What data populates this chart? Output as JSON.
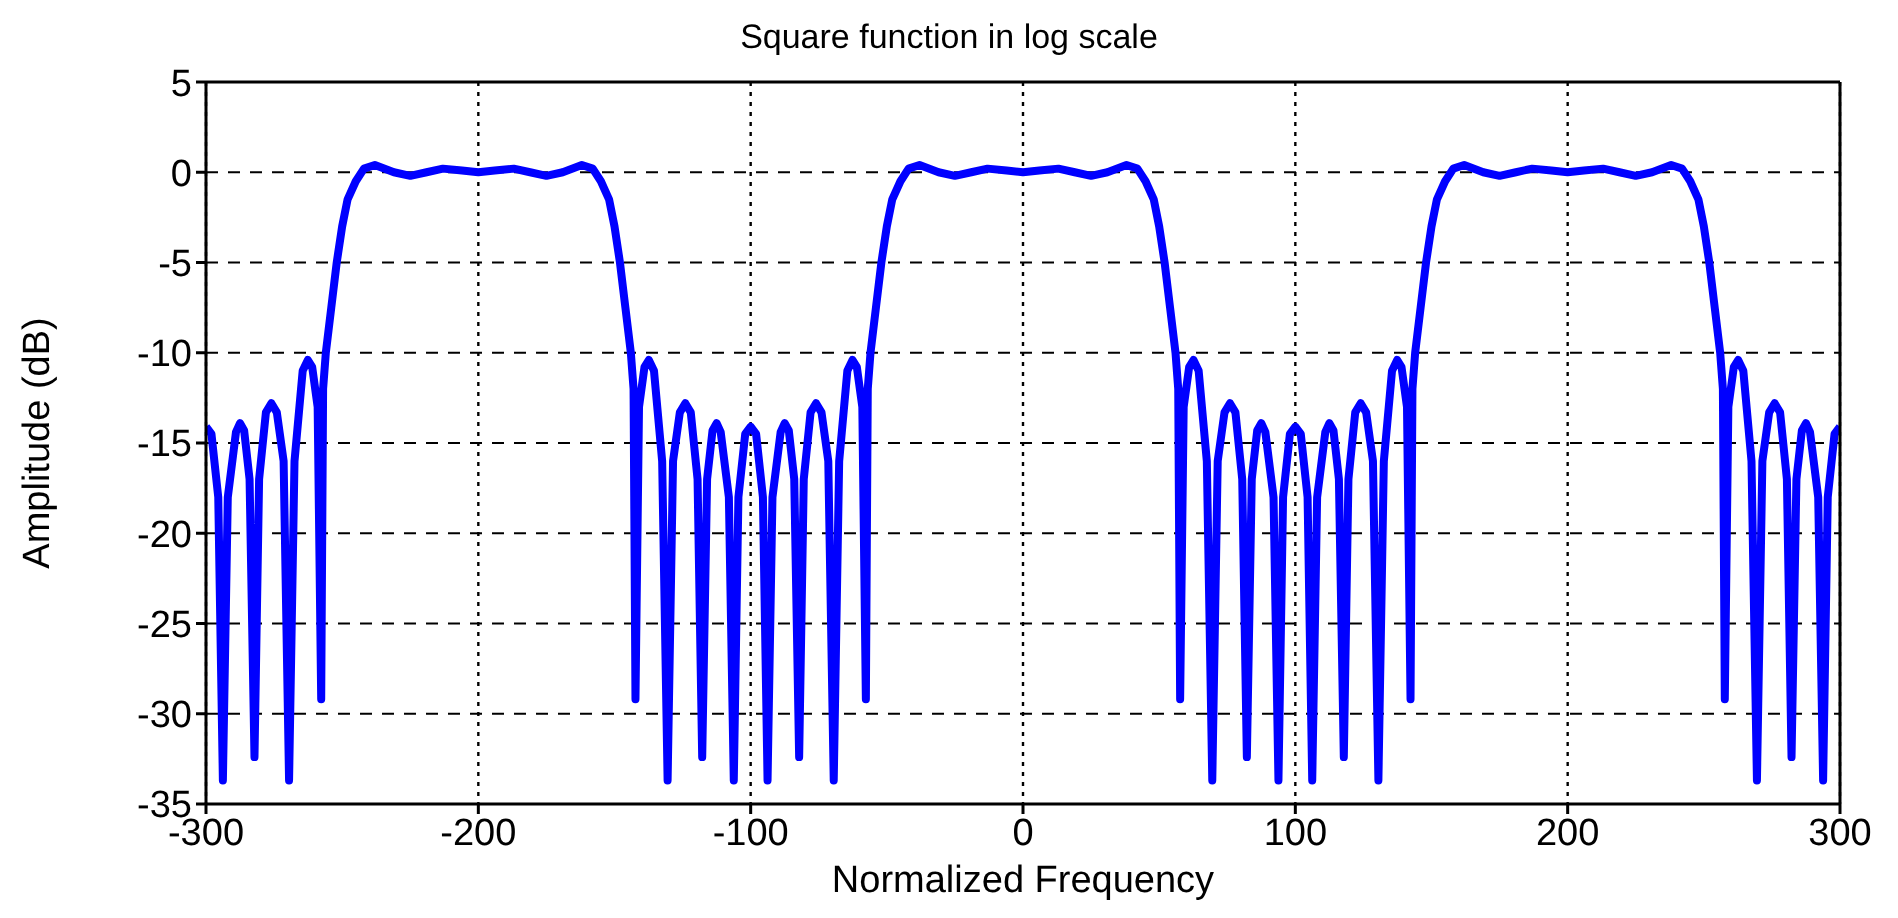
{
  "chart_data": {
    "type": "line",
    "title": "Square function in log scale",
    "xlabel": "Normalized Frequency",
    "ylabel": "Amplitude (dB)",
    "xlim": [
      -300,
      300
    ],
    "xticks": [
      -300,
      -200,
      -100,
      0,
      100,
      200,
      300
    ],
    "ylim": [
      -35,
      5
    ],
    "yticks": [
      5,
      0,
      -5,
      -10,
      -15,
      -20,
      -25,
      -30,
      -35
    ],
    "grid": true,
    "marker": "none",
    "line_style": "solid",
    "series": [
      {
        "color": "#0000ff",
        "x": [
          -300,
          -298,
          -295.5,
          -293.8,
          -292,
          -289,
          -287.5,
          -286,
          -284,
          -282.2,
          -280.5,
          -278,
          -276,
          -274,
          -271.5,
          -269.5,
          -267.5,
          -264.5,
          -262.6,
          -261,
          -259,
          -257.7,
          -257,
          -256,
          -254,
          -252,
          -250,
          -248,
          -245,
          -242,
          -238,
          -231,
          -225,
          -219,
          -213,
          -206,
          -200,
          -194,
          -187,
          -181,
          -175,
          -169,
          -162,
          -158,
          -155,
          -152,
          -150,
          -148,
          -146,
          -144,
          -143,
          -142.3,
          -141,
          -139,
          -137.4,
          -135.5,
          -132.5,
          -130.5,
          -128.5,
          -126,
          -124,
          -122,
          -119.5,
          -117.8,
          -116,
          -114,
          -112.5,
          -111,
          -108,
          -106.2,
          -104.5,
          -102,
          -100,
          -98,
          -95.5,
          -93.8,
          -92,
          -89,
          -87.5,
          -86,
          -84,
          -82.2,
          -80.5,
          -78,
          -76,
          -74,
          -71.5,
          -69.5,
          -67.5,
          -64.5,
          -62.6,
          -61,
          -59,
          -57.7,
          -57,
          -56,
          -54,
          -52,
          -50,
          -48,
          -45,
          -42,
          -38,
          -31,
          -25,
          -19,
          -13,
          -6,
          0,
          6,
          13,
          19,
          25,
          31,
          38,
          42,
          45,
          48,
          50,
          52,
          54,
          56,
          57,
          57.7,
          59,
          61,
          62.6,
          64.5,
          67.5,
          69.5,
          71.5,
          74,
          76,
          78,
          80.5,
          82.2,
          84,
          86,
          87.5,
          89,
          92,
          93.8,
          95.5,
          98,
          100,
          102,
          104.5,
          106.2,
          108,
          111,
          112.5,
          114,
          116,
          117.8,
          119.5,
          122,
          124,
          126,
          128.5,
          130.5,
          132.5,
          135.5,
          137.4,
          139,
          141,
          142.3,
          143,
          144,
          146,
          148,
          150,
          152,
          155,
          158,
          162,
          169,
          175,
          181,
          187,
          194,
          200,
          206,
          213,
          219,
          225,
          231,
          238,
          242,
          245,
          248,
          250,
          252,
          254,
          256,
          257,
          257.7,
          259,
          261,
          262.6,
          264.5,
          267.5,
          269.5,
          271.5,
          274,
          276,
          278,
          280.5,
          282.2,
          284,
          286,
          287.5,
          289,
          292,
          293.8,
          295.5,
          298,
          300
        ],
        "values": [
          -14.1,
          -14.5,
          -18,
          -33.7,
          -18,
          -14.4,
          -13.9,
          -14.3,
          -17,
          -32.4,
          -17,
          -13.3,
          -12.8,
          -13.3,
          -16,
          -33.7,
          -16,
          -11,
          -10.4,
          -10.8,
          -13,
          -29.2,
          -12,
          -10,
          -7.5,
          -5,
          -3,
          -1.5,
          -0.5,
          0.2,
          0.4,
          0,
          -0.2,
          0,
          0.2,
          0.1,
          0,
          0.1,
          0.2,
          0,
          -0.2,
          0,
          0.4,
          0.2,
          -0.5,
          -1.5,
          -3,
          -5,
          -7.5,
          -10,
          -12,
          -29.2,
          -13,
          -10.8,
          -10.4,
          -11,
          -16,
          -33.7,
          -16,
          -13.3,
          -12.8,
          -13.3,
          -17,
          -32.4,
          -17,
          -14.3,
          -13.9,
          -14.4,
          -18,
          -33.7,
          -18,
          -14.5,
          -14.1,
          -14.5,
          -18,
          -33.7,
          -18,
          -14.4,
          -13.9,
          -14.3,
          -17,
          -32.4,
          -17,
          -13.3,
          -12.8,
          -13.3,
          -16,
          -33.7,
          -16,
          -11,
          -10.4,
          -10.8,
          -13,
          -29.2,
          -12,
          -10,
          -7.5,
          -5,
          -3,
          -1.5,
          -0.5,
          0.2,
          0.4,
          0,
          -0.2,
          0,
          0.2,
          0.1,
          0,
          0.1,
          0.2,
          0,
          -0.2,
          0,
          0.4,
          0.2,
          -0.5,
          -1.5,
          -3,
          -5,
          -7.5,
          -10,
          -12,
          -29.2,
          -13,
          -10.8,
          -10.4,
          -11,
          -16,
          -33.7,
          -16,
          -13.3,
          -12.8,
          -13.3,
          -17,
          -32.4,
          -17,
          -14.3,
          -13.9,
          -14.4,
          -18,
          -33.7,
          -18,
          -14.5,
          -14.1,
          -14.5,
          -18,
          -33.7,
          -18,
          -14.4,
          -13.9,
          -14.3,
          -17,
          -32.4,
          -17,
          -13.3,
          -12.8,
          -13.3,
          -16,
          -33.7,
          -16,
          -11,
          -10.4,
          -10.8,
          -13,
          -29.2,
          -12,
          -10,
          -7.5,
          -5,
          -3,
          -1.5,
          -0.5,
          0.2,
          0.4,
          0,
          -0.2,
          0,
          0.2,
          0.1,
          0,
          0.1,
          0.2,
          0,
          -0.2,
          0,
          0.4,
          0.2,
          -0.5,
          -1.5,
          -3,
          -5,
          -7.5,
          -10,
          -12,
          -29.2,
          -13,
          -10.8,
          -10.4,
          -11,
          -16,
          -33.7,
          -16,
          -13.3,
          -12.8,
          -13.3,
          -17,
          -32.4,
          -17,
          -14.3,
          -13.9,
          -14.4,
          -18,
          -33.7,
          -18,
          -14.5,
          -14.1
        ]
      }
    ]
  }
}
